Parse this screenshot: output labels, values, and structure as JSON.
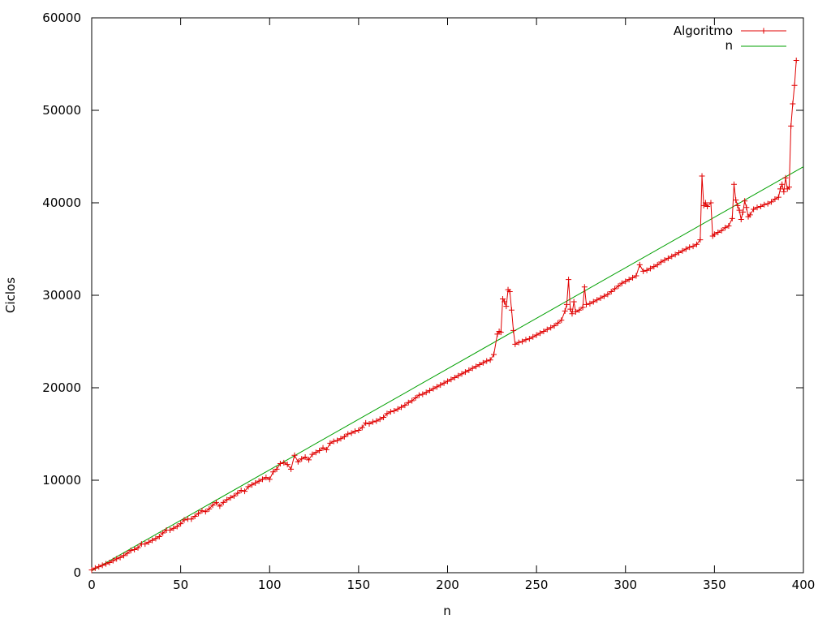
{
  "chart_data": {
    "type": "line",
    "xlabel": "n",
    "ylabel": "Ciclos",
    "xlim": [
      0,
      400
    ],
    "ylim": [
      0,
      60000
    ],
    "x_ticks": [
      0,
      50,
      100,
      150,
      200,
      250,
      300,
      350,
      400
    ],
    "y_ticks": [
      0,
      10000,
      20000,
      30000,
      40000,
      50000,
      60000
    ],
    "grid": false,
    "legend_position": "top-right",
    "series": [
      {
        "name": "Algoritmo",
        "color": "#e00000",
        "marker": "plus",
        "points": [
          [
            0,
            300
          ],
          [
            2,
            500
          ],
          [
            4,
            650
          ],
          [
            6,
            800
          ],
          [
            8,
            950
          ],
          [
            10,
            1100
          ],
          [
            12,
            1300
          ],
          [
            14,
            1500
          ],
          [
            16,
            1650
          ],
          [
            18,
            1850
          ],
          [
            20,
            2100
          ],
          [
            22,
            2400
          ],
          [
            24,
            2500
          ],
          [
            26,
            2700
          ],
          [
            28,
            3100
          ],
          [
            30,
            3100
          ],
          [
            32,
            3300
          ],
          [
            34,
            3500
          ],
          [
            36,
            3700
          ],
          [
            38,
            3900
          ],
          [
            40,
            4300
          ],
          [
            42,
            4600
          ],
          [
            44,
            4600
          ],
          [
            46,
            4800
          ],
          [
            48,
            5000
          ],
          [
            50,
            5300
          ],
          [
            52,
            5700
          ],
          [
            54,
            5800
          ],
          [
            56,
            5800
          ],
          [
            58,
            6100
          ],
          [
            60,
            6400
          ],
          [
            62,
            6700
          ],
          [
            64,
            6600
          ],
          [
            66,
            6900
          ],
          [
            68,
            7300
          ],
          [
            70,
            7600
          ],
          [
            72,
            7200
          ],
          [
            74,
            7600
          ],
          [
            76,
            7900
          ],
          [
            78,
            8100
          ],
          [
            80,
            8300
          ],
          [
            82,
            8600
          ],
          [
            84,
            8900
          ],
          [
            86,
            8800
          ],
          [
            88,
            9300
          ],
          [
            90,
            9500
          ],
          [
            92,
            9700
          ],
          [
            94,
            9900
          ],
          [
            96,
            10100
          ],
          [
            98,
            10300
          ],
          [
            100,
            10100
          ],
          [
            102,
            10900
          ],
          [
            104,
            11200
          ],
          [
            106,
            11800
          ],
          [
            108,
            11900
          ],
          [
            110,
            11700
          ],
          [
            112,
            11200
          ],
          [
            114,
            12700
          ],
          [
            116,
            12000
          ],
          [
            118,
            12300
          ],
          [
            120,
            12500
          ],
          [
            122,
            12200
          ],
          [
            124,
            12800
          ],
          [
            126,
            13000
          ],
          [
            128,
            13200
          ],
          [
            130,
            13500
          ],
          [
            132,
            13300
          ],
          [
            134,
            14000
          ],
          [
            136,
            14200
          ],
          [
            138,
            14300
          ],
          [
            140,
            14500
          ],
          [
            142,
            14700
          ],
          [
            144,
            15000
          ],
          [
            146,
            15100
          ],
          [
            148,
            15300
          ],
          [
            150,
            15400
          ],
          [
            152,
            15700
          ],
          [
            154,
            16200
          ],
          [
            156,
            16100
          ],
          [
            158,
            16300
          ],
          [
            160,
            16400
          ],
          [
            162,
            16600
          ],
          [
            164,
            16800
          ],
          [
            166,
            17200
          ],
          [
            168,
            17400
          ],
          [
            170,
            17500
          ],
          [
            172,
            17700
          ],
          [
            174,
            17900
          ],
          [
            176,
            18100
          ],
          [
            178,
            18400
          ],
          [
            180,
            18600
          ],
          [
            182,
            18900
          ],
          [
            184,
            19200
          ],
          [
            186,
            19300
          ],
          [
            188,
            19500
          ],
          [
            190,
            19700
          ],
          [
            192,
            19900
          ],
          [
            194,
            20100
          ],
          [
            196,
            20300
          ],
          [
            198,
            20500
          ],
          [
            200,
            20700
          ],
          [
            202,
            20900
          ],
          [
            204,
            21100
          ],
          [
            206,
            21300
          ],
          [
            208,
            21500
          ],
          [
            210,
            21700
          ],
          [
            212,
            21900
          ],
          [
            214,
            22100
          ],
          [
            216,
            22300
          ],
          [
            218,
            22500
          ],
          [
            220,
            22700
          ],
          [
            222,
            22900
          ],
          [
            224,
            23000
          ],
          [
            226,
            23600
          ],
          [
            228,
            25800
          ],
          [
            229,
            26100
          ],
          [
            230,
            26000
          ],
          [
            231,
            29600
          ],
          [
            232,
            29300
          ],
          [
            233,
            28800
          ],
          [
            234,
            30600
          ],
          [
            235,
            30400
          ],
          [
            236,
            28400
          ],
          [
            237,
            26200
          ],
          [
            238,
            24700
          ],
          [
            240,
            24900
          ],
          [
            242,
            25000
          ],
          [
            244,
            25200
          ],
          [
            246,
            25300
          ],
          [
            248,
            25500
          ],
          [
            250,
            25700
          ],
          [
            252,
            25900
          ],
          [
            254,
            26100
          ],
          [
            256,
            26300
          ],
          [
            258,
            26500
          ],
          [
            260,
            26700
          ],
          [
            262,
            27000
          ],
          [
            264,
            27300
          ],
          [
            266,
            28300
          ],
          [
            267,
            29000
          ],
          [
            268,
            31700
          ],
          [
            269,
            28500
          ],
          [
            270,
            28000
          ],
          [
            271,
            29300
          ],
          [
            272,
            28200
          ],
          [
            274,
            28400
          ],
          [
            276,
            28700
          ],
          [
            277,
            30900
          ],
          [
            278,
            29000
          ],
          [
            280,
            29100
          ],
          [
            282,
            29300
          ],
          [
            284,
            29500
          ],
          [
            286,
            29700
          ],
          [
            288,
            29900
          ],
          [
            290,
            30100
          ],
          [
            292,
            30400
          ],
          [
            294,
            30700
          ],
          [
            296,
            31000
          ],
          [
            298,
            31300
          ],
          [
            300,
            31500
          ],
          [
            302,
            31700
          ],
          [
            304,
            31900
          ],
          [
            306,
            32100
          ],
          [
            308,
            33300
          ],
          [
            310,
            32600
          ],
          [
            312,
            32700
          ],
          [
            314,
            32900
          ],
          [
            316,
            33100
          ],
          [
            318,
            33300
          ],
          [
            320,
            33600
          ],
          [
            322,
            33800
          ],
          [
            324,
            34000
          ],
          [
            326,
            34200
          ],
          [
            328,
            34400
          ],
          [
            330,
            34600
          ],
          [
            332,
            34800
          ],
          [
            334,
            35000
          ],
          [
            336,
            35200
          ],
          [
            338,
            35300
          ],
          [
            340,
            35500
          ],
          [
            342,
            36000
          ],
          [
            343,
            42900
          ],
          [
            344,
            39700
          ],
          [
            345,
            40000
          ],
          [
            346,
            39600
          ],
          [
            348,
            40000
          ],
          [
            349,
            36400
          ],
          [
            350,
            36600
          ],
          [
            352,
            36800
          ],
          [
            354,
            37000
          ],
          [
            356,
            37300
          ],
          [
            358,
            37500
          ],
          [
            360,
            38300
          ],
          [
            361,
            42000
          ],
          [
            362,
            40300
          ],
          [
            363,
            39700
          ],
          [
            364,
            39200
          ],
          [
            365,
            38200
          ],
          [
            366,
            39000
          ],
          [
            367,
            40200
          ],
          [
            368,
            39500
          ],
          [
            369,
            38500
          ],
          [
            370,
            38700
          ],
          [
            372,
            39300
          ],
          [
            374,
            39500
          ],
          [
            376,
            39600
          ],
          [
            378,
            39800
          ],
          [
            380,
            39900
          ],
          [
            382,
            40100
          ],
          [
            384,
            40400
          ],
          [
            386,
            40600
          ],
          [
            387,
            41500
          ],
          [
            388,
            42000
          ],
          [
            389,
            41200
          ],
          [
            390,
            42700
          ],
          [
            391,
            41500
          ],
          [
            392,
            41700
          ],
          [
            393,
            48300
          ],
          [
            394,
            50700
          ],
          [
            395,
            52700
          ],
          [
            396,
            55400
          ]
        ]
      },
      {
        "name": "n",
        "color": "#00a000",
        "marker": "none",
        "points": [
          [
            0,
            200
          ],
          [
            400,
            43900
          ]
        ]
      }
    ]
  }
}
